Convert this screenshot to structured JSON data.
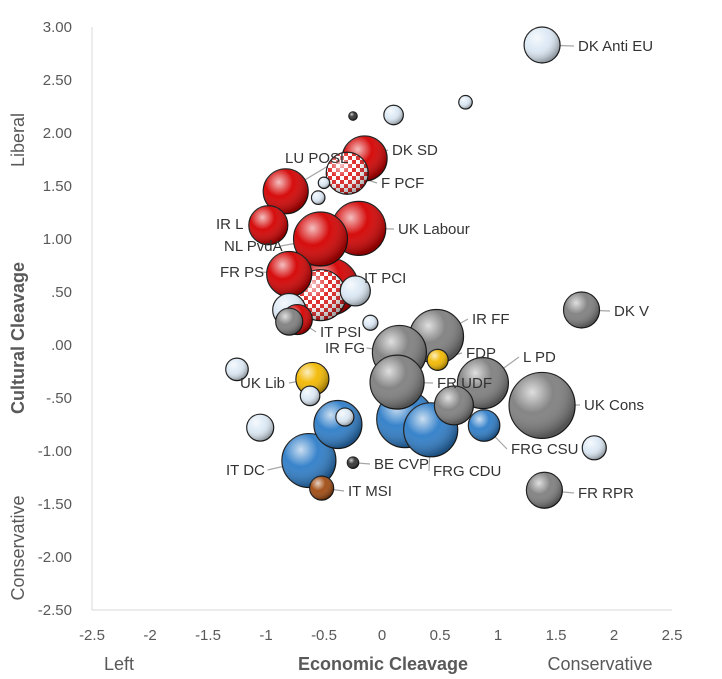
{
  "chart_data": {
    "type": "scatter",
    "title": "",
    "xlabel": "Economic Cleavage",
    "ylabel": "Cultural Cleavage",
    "x_left_label": "Left",
    "x_right_label": "Conservative",
    "y_top_label": "Liberal",
    "y_bottom_label": "Conservative",
    "xlim": [
      -2.5,
      2.5
    ],
    "ylim": [
      -2.5,
      3.0
    ],
    "x_ticks": [
      "-2.5",
      "-2",
      "-1.5",
      "-1",
      "-0.5",
      "0",
      "0.5",
      "1",
      "1.5",
      "2",
      "2.5"
    ],
    "y_ticks": [
      "3.00",
      "2.50",
      "2.00",
      "1.50",
      "1.00",
      ".50",
      ".00",
      "-.50",
      "-1.00",
      "-1.50",
      "-2.00",
      "-2.50"
    ],
    "grid": false,
    "legend": "none",
    "colors": {
      "red": "#d40000",
      "gray": "#7f7f7f",
      "blue": "#2e7dc8",
      "white": "#dce9f5",
      "yellow": "#f2b800",
      "brown": "#a04a10",
      "dark": "#333333",
      "checker": "#e02020"
    },
    "points": [
      {
        "x": 1.38,
        "y": 2.83,
        "size": 1.0,
        "color": "white",
        "label": "DK Anti EU"
      },
      {
        "x": 0.72,
        "y": 2.29,
        "size": 0.25,
        "color": "white",
        "label": ""
      },
      {
        "x": 0.1,
        "y": 2.17,
        "size": 0.45,
        "color": "white",
        "label": ""
      },
      {
        "x": -0.25,
        "y": 2.16,
        "size": 0.08,
        "color": "dark",
        "label": ""
      },
      {
        "x": -0.15,
        "y": 1.76,
        "size": 1.3,
        "color": "red",
        "label": "DK SD"
      },
      {
        "x": -0.3,
        "y": 1.62,
        "size": 1.2,
        "color": "checker",
        "label": "F PCF"
      },
      {
        "x": -0.5,
        "y": 1.53,
        "size": 0.18,
        "color": "white",
        "label": ""
      },
      {
        "x": -0.83,
        "y": 1.45,
        "size": 1.3,
        "color": "red",
        "label": "LU POSL"
      },
      {
        "x": -0.55,
        "y": 1.39,
        "size": 0.25,
        "color": "white",
        "label": ""
      },
      {
        "x": -0.98,
        "y": 1.13,
        "size": 1.1,
        "color": "red",
        "label": "IR L"
      },
      {
        "x": -0.2,
        "y": 1.1,
        "size": 1.6,
        "color": "red",
        "label": "UK Labour"
      },
      {
        "x": -0.53,
        "y": 1.0,
        "size": 1.6,
        "color": "red",
        "label": "NL PvdA"
      },
      {
        "x": -0.8,
        "y": 0.67,
        "size": 1.3,
        "color": "red",
        "label": "FR PS"
      },
      {
        "x": -0.45,
        "y": 0.55,
        "size": 1.7,
        "color": "red",
        "label": ""
      },
      {
        "x": -0.53,
        "y": 0.47,
        "size": 1.5,
        "color": "checker",
        "label": "IT PCI"
      },
      {
        "x": -0.23,
        "y": 0.51,
        "size": 0.8,
        "color": "white",
        "label": ""
      },
      {
        "x": -0.8,
        "y": 0.33,
        "size": 0.9,
        "color": "white",
        "label": ""
      },
      {
        "x": -0.8,
        "y": 0.22,
        "size": 0.7,
        "color": "gray",
        "label": ""
      },
      {
        "x": -0.73,
        "y": 0.24,
        "size": 0.8,
        "color": "red",
        "label": "IT PSI"
      },
      {
        "x": -0.1,
        "y": 0.21,
        "size": 0.3,
        "color": "white",
        "label": ""
      },
      {
        "x": 0.47,
        "y": 0.08,
        "size": 1.6,
        "color": "gray",
        "label": "IR FF"
      },
      {
        "x": 0.15,
        "y": -0.07,
        "size": 1.6,
        "color": "gray",
        "label": "IR FG"
      },
      {
        "x": 0.48,
        "y": -0.14,
        "size": 0.5,
        "color": "yellow",
        "label": "FDP"
      },
      {
        "x": 1.72,
        "y": 0.33,
        "size": 1.0,
        "color": "gray",
        "label": "DK V"
      },
      {
        "x": -1.25,
        "y": -0.23,
        "size": 0.55,
        "color": "white",
        "label": ""
      },
      {
        "x": -0.6,
        "y": -0.32,
        "size": 0.9,
        "color": "yellow",
        "label": "UK Lib"
      },
      {
        "x": -0.62,
        "y": -0.48,
        "size": 0.45,
        "color": "white",
        "label": ""
      },
      {
        "x": 0.13,
        "y": -0.35,
        "size": 1.6,
        "color": "gray",
        "label": "FR UDF"
      },
      {
        "x": 0.87,
        "y": -0.36,
        "size": 1.5,
        "color": "gray",
        "label": "L PD"
      },
      {
        "x": 1.38,
        "y": -0.57,
        "size": 2.0,
        "color": "gray",
        "label": "UK Cons"
      },
      {
        "x": 0.62,
        "y": -0.57,
        "size": 1.1,
        "color": "gray",
        "label": ""
      },
      {
        "x": 0.42,
        "y": -0.8,
        "size": 1.6,
        "color": "blue",
        "label": "FRG CDU"
      },
      {
        "x": 0.2,
        "y": -0.7,
        "size": 1.7,
        "color": "blue",
        "label": ""
      },
      {
        "x": 0.88,
        "y": -0.76,
        "size": 0.85,
        "color": "blue",
        "label": "FRG CSU"
      },
      {
        "x": -0.38,
        "y": -0.75,
        "size": 1.4,
        "color": "blue",
        "label": ""
      },
      {
        "x": -0.32,
        "y": -0.68,
        "size": 0.4,
        "color": "white",
        "label": ""
      },
      {
        "x": -1.05,
        "y": -0.78,
        "size": 0.7,
        "color": "white",
        "label": ""
      },
      {
        "x": 1.83,
        "y": -0.97,
        "size": 0.6,
        "color": "white",
        "label": ""
      },
      {
        "x": -0.63,
        "y": -1.09,
        "size": 1.6,
        "color": "blue",
        "label": "IT DC"
      },
      {
        "x": -0.25,
        "y": -1.11,
        "size": 0.18,
        "color": "dark",
        "label": "BE CVP"
      },
      {
        "x": -0.52,
        "y": -1.35,
        "size": 0.6,
        "color": "brown",
        "label": "IT MSI"
      },
      {
        "x": 1.4,
        "y": -1.37,
        "size": 1.0,
        "color": "gray",
        "label": "FR RPR"
      }
    ],
    "annotations": [
      {
        "text": "DK Anti EU"
      },
      {
        "text": "DK SD"
      },
      {
        "text": "LU POSL"
      },
      {
        "text": "F PCF"
      },
      {
        "text": "IR L"
      },
      {
        "text": "UK Labour"
      },
      {
        "text": "NL PvdA"
      },
      {
        "text": "FR PS"
      },
      {
        "text": "IT PCI"
      },
      {
        "text": "IT PSI"
      },
      {
        "text": "IR FF"
      },
      {
        "text": "IR FG"
      },
      {
        "text": "FDP"
      },
      {
        "text": "L PD"
      },
      {
        "text": "DK V"
      },
      {
        "text": "UK Lib"
      },
      {
        "text": "FR UDF"
      },
      {
        "text": "UK Cons"
      },
      {
        "text": "FRG CSU"
      },
      {
        "text": "FRG CDU"
      },
      {
        "text": "IT DC"
      },
      {
        "text": "BE CVP"
      },
      {
        "text": "IT MSI"
      },
      {
        "text": "FR RPR"
      }
    ]
  }
}
